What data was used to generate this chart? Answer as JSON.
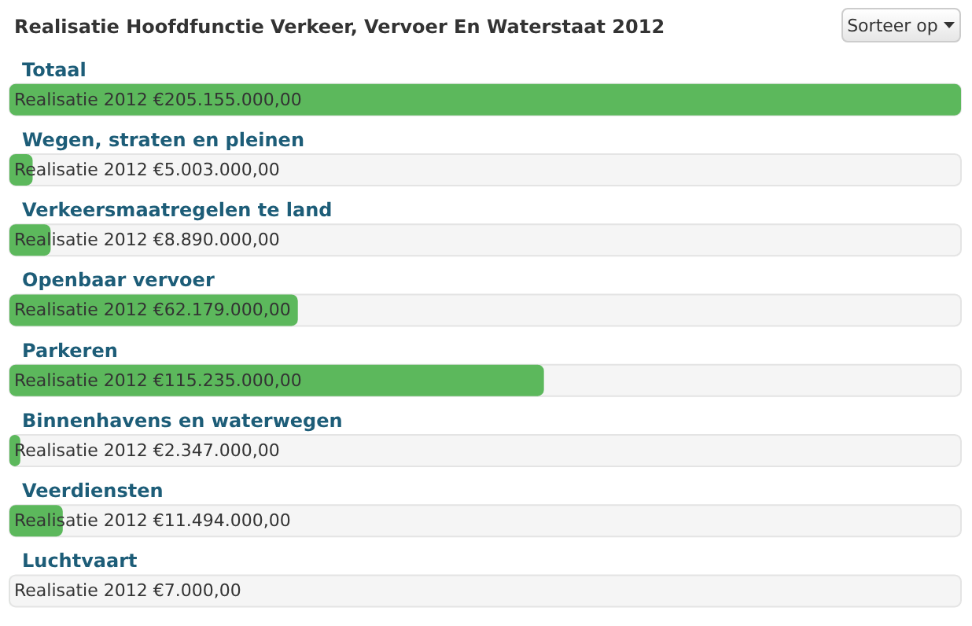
{
  "chart_data": {
    "type": "bar",
    "orientation": "horizontal",
    "title": "Realisatie Hoofdfunctie Verkeer, Vervoer En Waterstaat 2012",
    "categories": [
      "Totaal",
      "Wegen, straten en pleinen",
      "Verkeersmaatregelen te land",
      "Openbaar vervoer",
      "Parkeren",
      "Binnenhavens en waterwegen",
      "Veerdiensten",
      "Luchtvaart"
    ],
    "values": [
      205155000,
      5003000,
      8890000,
      62179000,
      115235000,
      2347000,
      11494000,
      7000
    ],
    "value_labels": [
      "Realisatie 2012 €205.155.000,00",
      "Realisatie 2012 €5.003.000,00",
      "Realisatie 2012 €8.890.000,00",
      "Realisatie 2012 €62.179.000,00",
      "Realisatie 2012 €115.235.000,00",
      "Realisatie 2012 €2.347.000,00",
      "Realisatie 2012 €11.494.000,00",
      "Realisatie 2012 €7.000,00"
    ],
    "color": "#5cb85c",
    "annotations": [
      "Sorteer op"
    ]
  }
}
